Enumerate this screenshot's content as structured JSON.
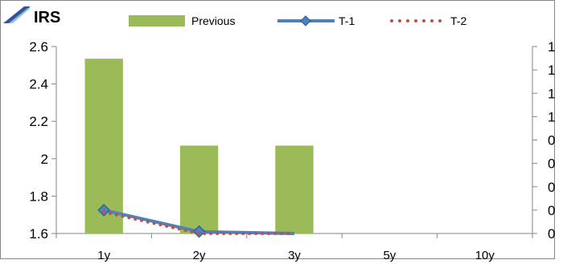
{
  "chart_data": {
    "type": "bar+line",
    "title": "IRS",
    "categories": [
      "1y",
      "2y",
      "3y",
      "5y",
      "10y"
    ],
    "y_left": {
      "min": 1.6,
      "max": 2.6,
      "ticks": [
        "2.6",
        "2.4",
        "2.2",
        "2",
        "1.8",
        "1.6"
      ]
    },
    "y_right": {
      "min": 0,
      "max": 1,
      "ticks": [
        "1",
        "1",
        "1",
        "1",
        "0",
        "0",
        "0",
        "0",
        "0"
      ]
    },
    "series": [
      {
        "name": "Previous",
        "kind": "bar",
        "axis": "left",
        "color": "#9BBB59",
        "values": [
          2.535,
          2.07,
          2.07,
          null,
          null
        ]
      },
      {
        "name": "T-1",
        "kind": "line",
        "axis": "left",
        "color": "#4F81BD",
        "marker": "diamond",
        "values": [
          1.725,
          1.61,
          1.585,
          null,
          null
        ]
      },
      {
        "name": "T-2",
        "kind": "line",
        "axis": "left",
        "color": "#C0504D",
        "style": "dotted",
        "values": [
          1.715,
          1.6,
          1.585,
          null,
          null
        ]
      }
    ],
    "legend": "top",
    "grid": false
  }
}
